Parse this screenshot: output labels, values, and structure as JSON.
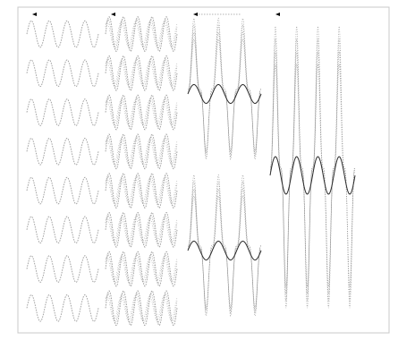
{
  "figure": {
    "description_visible_text": "",
    "colors": {
      "background": "#ffffff",
      "frame": "#c8c8c8",
      "wave": "#9a9a9a",
      "wave_dark": "#2a2a2a",
      "marker": "#000000"
    }
  },
  "chart_data": {
    "type": "line",
    "title": "",
    "xlabel": "",
    "ylabel": "",
    "grid": false,
    "legend": "none",
    "panels": [
      {
        "name": "",
        "waveform": "sine",
        "rows": 8,
        "cycles_per_row": 4,
        "amplitude": 1.0,
        "has_dark_overlay": false,
        "marker": true
      },
      {
        "name": "",
        "waveform": "sine-dense",
        "rows": 8,
        "cycles_per_row": 5,
        "amplitude": 1.3,
        "has_dark_overlay": true,
        "marker": true
      },
      {
        "name": "",
        "waveform": "spiky-burst",
        "rows": 2,
        "cycles_per_row": 3,
        "amplitude": 1.0,
        "has_dark_overlay": true,
        "marker": true
      },
      {
        "name": "",
        "waveform": "spiky-burst",
        "rows": 1,
        "cycles_per_row": 4,
        "amplitude": 1.0,
        "has_dark_overlay": true,
        "marker": true
      }
    ]
  }
}
